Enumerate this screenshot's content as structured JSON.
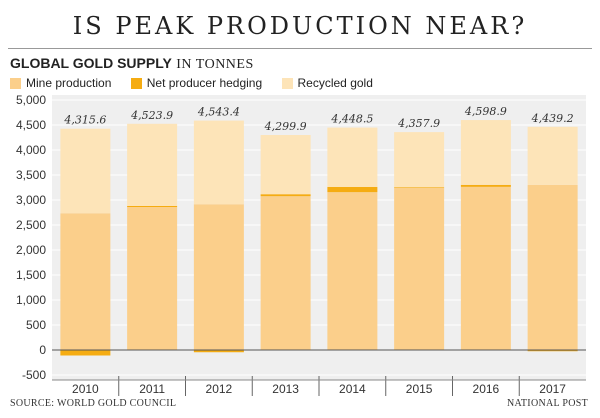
{
  "headline": "IS PEAK PRODUCTION NEAR?",
  "subtitle_bold": "GLOBAL GOLD SUPPLY",
  "subtitle_rest": "IN TONNES",
  "source": "SOURCE: WORLD GOLD COUNCIL",
  "credit": "NATIONAL POST",
  "colors": {
    "mine": "#fbcf8b",
    "hedging": "#f5ac12",
    "recycled": "#fde4b8",
    "plot_bg": "#efefef"
  },
  "chart_data": {
    "type": "bar",
    "stacked": true,
    "categories": [
      "2010",
      "2011",
      "2012",
      "2013",
      "2014",
      "2015",
      "2016",
      "2017"
    ],
    "series": [
      {
        "name": "Mine production",
        "values": [
          2735,
          2860,
          2915,
          3076,
          3157,
          3240,
          3263,
          3301
        ]
      },
      {
        "name": "Net producer hedging",
        "values": [
          -110,
          20,
          -45,
          40,
          105,
          15,
          40,
          -25
        ]
      },
      {
        "name": "Recycled gold",
        "values": [
          1690.6,
          1643.9,
          1673.4,
          1183.9,
          1186.5,
          1102.9,
          1295.9,
          1163.2
        ]
      }
    ],
    "totals": [
      "4,315.6",
      "4,523.9",
      "4,543.4",
      "4,299.9",
      "4,448.5",
      "4,357.9",
      "4,598.9",
      "4,439.2"
    ],
    "yticks": [
      "5,000",
      "4,500",
      "4,000",
      "3,500",
      "3,000",
      "2,500",
      "2,000",
      "1,500",
      "1,000",
      "500",
      "0",
      "-500"
    ],
    "ytick_values": [
      5000,
      4500,
      4000,
      3500,
      3000,
      2500,
      2000,
      1500,
      1000,
      500,
      0,
      -500
    ],
    "ylim": [
      -500,
      5000
    ],
    "grid": true,
    "legend_position": "top-left"
  }
}
